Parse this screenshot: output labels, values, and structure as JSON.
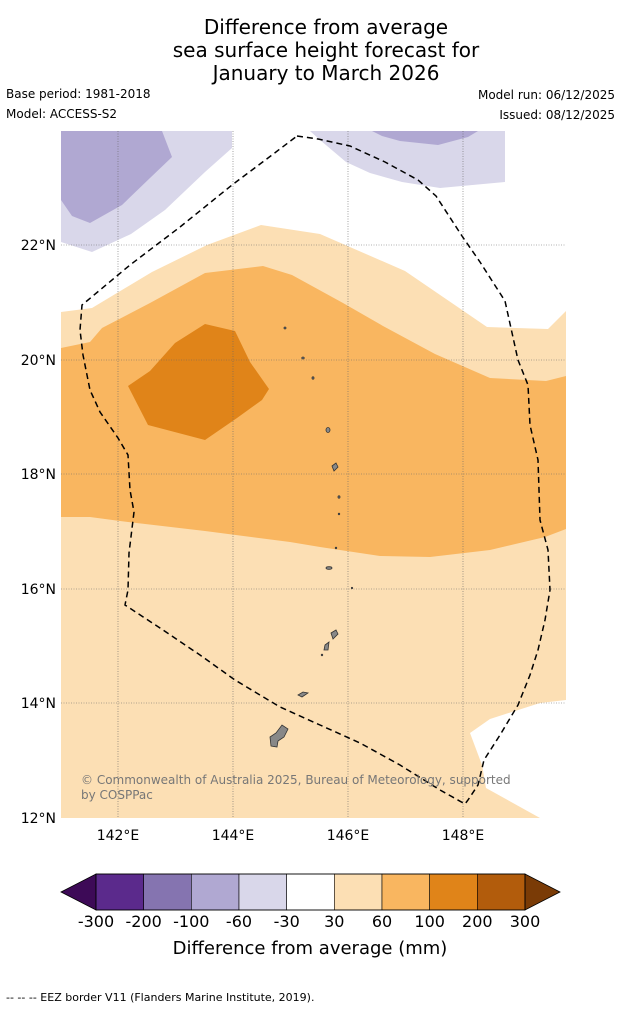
{
  "title": {
    "line1": "Difference from average",
    "line2": "sea surface height forecast for",
    "line3": "January to March 2026"
  },
  "meta": {
    "base_period": "Base period: 1981-2018",
    "model": "Model: ACCESS-S2",
    "model_run": "Model run: 06/12/2025",
    "issued": "Issued: 08/12/2025"
  },
  "map": {
    "lat_labels": [
      "22°N",
      "20°N",
      "18°N",
      "16°N",
      "14°N",
      "12°N"
    ],
    "lon_labels": [
      "142°E",
      "144°E",
      "146°E",
      "148°E"
    ],
    "copyright_line1": "© Commonwealth of Australia 2025, Bureau of Meteorology, supported",
    "copyright_line2": "by COSPPac"
  },
  "colorbar": {
    "title": "Difference from average (mm)",
    "ticks": [
      "-300",
      "-200",
      "-100",
      "-60",
      "-30",
      "30",
      "60",
      "100",
      "200",
      "300"
    ],
    "colors": [
      "#3d0a57",
      "#5b2a8c",
      "#8574b0",
      "#b0a8d2",
      "#d9d7ea",
      "#ffffff",
      "#fcdfb4",
      "#f9b660",
      "#e08419",
      "#b25c0c",
      "#7a3b06"
    ]
  },
  "footer": "--  --  -- EEZ border V11 (Flanders Marine Institute, 2019)."
}
